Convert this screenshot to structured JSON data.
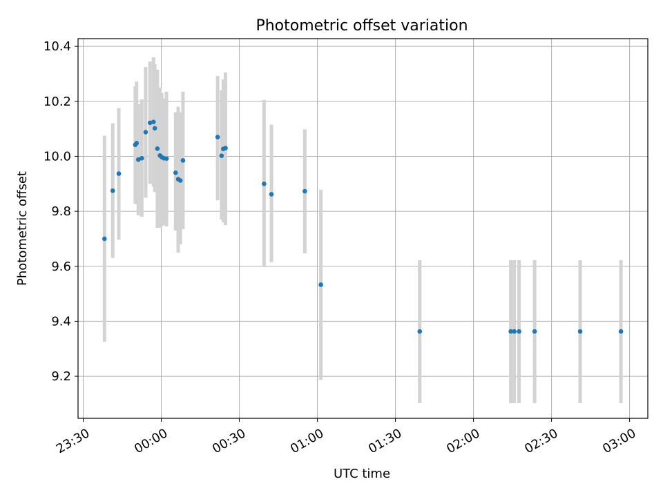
{
  "chart_data": {
    "type": "scatter",
    "title": "Photometric offset variation",
    "xlabel": "UTC time",
    "ylabel": "Photometric offset",
    "xlim": [
      "23:28",
      "03:07"
    ],
    "ylim": [
      9.047,
      10.428
    ],
    "x_ticks": [
      "23:30",
      "00:00",
      "00:30",
      "01:00",
      "01:30",
      "02:00",
      "02:30",
      "03:00"
    ],
    "y_ticks": [
      "9.2",
      "9.4",
      "9.6",
      "9.8",
      "10.0",
      "10.2",
      "10.4"
    ],
    "grid": true,
    "marker_color": "#1f77b4",
    "errorbar_color": "#d3d3d3",
    "points": [
      {
        "x": "23:38:10",
        "y": 9.7,
        "lo": 9.325,
        "hi": 10.075
      },
      {
        "x": "23:41:20",
        "y": 9.875,
        "lo": 9.63,
        "hi": 10.12
      },
      {
        "x": "23:43:40",
        "y": 9.937,
        "lo": 9.697,
        "hi": 10.175
      },
      {
        "x": "23:50:00",
        "y": 10.042,
        "lo": 9.828,
        "hi": 10.255
      },
      {
        "x": "23:50:30",
        "y": 10.048,
        "lo": 9.825,
        "hi": 10.272
      },
      {
        "x": "23:51:10",
        "y": 9.988,
        "lo": 9.785,
        "hi": 10.19
      },
      {
        "x": "23:52:30",
        "y": 9.993,
        "lo": 9.78,
        "hi": 10.207
      },
      {
        "x": "23:54:00",
        "y": 10.088,
        "lo": 9.85,
        "hi": 10.325
      },
      {
        "x": "23:55:40",
        "y": 10.122,
        "lo": 9.9,
        "hi": 10.345
      },
      {
        "x": "23:57:00",
        "y": 10.125,
        "lo": 9.89,
        "hi": 10.36
      },
      {
        "x": "23:57:30",
        "y": 10.102,
        "lo": 9.87,
        "hi": 10.335
      },
      {
        "x": "23:58:30",
        "y": 10.028,
        "lo": 9.74,
        "hi": 10.315
      },
      {
        "x": "23:59:30",
        "y": 10.003,
        "lo": 9.74,
        "hi": 10.25
      },
      {
        "x": "00:00:10",
        "y": 9.997,
        "lo": 9.745,
        "hi": 10.23
      },
      {
        "x": "00:01:00",
        "y": 9.993,
        "lo": 9.75,
        "hi": 10.21
      },
      {
        "x": "00:02:00",
        "y": 9.992,
        "lo": 9.745,
        "hi": 10.235
      },
      {
        "x": "00:05:30",
        "y": 9.94,
        "lo": 9.73,
        "hi": 10.16
      },
      {
        "x": "00:06:30",
        "y": 9.917,
        "lo": 9.65,
        "hi": 10.18
      },
      {
        "x": "00:07:20",
        "y": 9.912,
        "lo": 9.68,
        "hi": 10.16
      },
      {
        "x": "00:08:20",
        "y": 9.985,
        "lo": 9.735,
        "hi": 10.235
      },
      {
        "x": "00:21:40",
        "y": 10.07,
        "lo": 9.84,
        "hi": 10.292
      },
      {
        "x": "00:23:10",
        "y": 10.002,
        "lo": 9.77,
        "hi": 10.24
      },
      {
        "x": "00:23:50",
        "y": 10.027,
        "lo": 9.76,
        "hi": 10.28
      },
      {
        "x": "00:24:40",
        "y": 10.03,
        "lo": 9.75,
        "hi": 10.305
      },
      {
        "x": "00:39:30",
        "y": 9.9,
        "lo": 9.597,
        "hi": 10.205
      },
      {
        "x": "00:42:20",
        "y": 9.862,
        "lo": 9.615,
        "hi": 10.115
      },
      {
        "x": "00:55:10",
        "y": 9.873,
        "lo": 9.647,
        "hi": 10.098
      },
      {
        "x": "01:01:20",
        "y": 9.533,
        "lo": 9.187,
        "hi": 9.878
      },
      {
        "x": "01:39:20",
        "y": 9.363,
        "lo": 9.102,
        "hi": 9.622
      },
      {
        "x": "02:14:20",
        "y": 9.363,
        "lo": 9.102,
        "hi": 9.622
      },
      {
        "x": "02:15:40",
        "y": 9.363,
        "lo": 9.102,
        "hi": 9.622
      },
      {
        "x": "02:17:30",
        "y": 9.363,
        "lo": 9.102,
        "hi": 9.622
      },
      {
        "x": "02:23:30",
        "y": 9.363,
        "lo": 9.102,
        "hi": 9.622
      },
      {
        "x": "02:41:00",
        "y": 9.363,
        "lo": 9.102,
        "hi": 9.622
      },
      {
        "x": "02:56:40",
        "y": 9.363,
        "lo": 9.102,
        "hi": 9.622
      }
    ]
  }
}
